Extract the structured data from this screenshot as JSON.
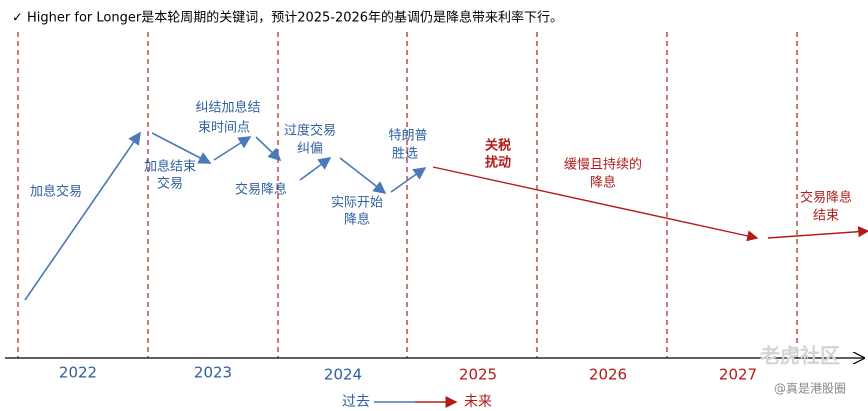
{
  "title": "✓   Higher for Longer是本轮周期的关键词，预计2025-2026年的基调仍是降息带来利率下行。",
  "years": [
    "2022",
    "2023",
    "2024",
    "2025",
    "2026",
    "2027"
  ],
  "events": [
    {
      "lines": [
        "加息交易"
      ]
    },
    {
      "lines": [
        "加息结束",
        "交易"
      ]
    },
    {
      "lines": [
        "纠结加息结",
        "束时间点"
      ]
    },
    {
      "lines": [
        "交易降息"
      ]
    },
    {
      "lines": [
        "过度交易",
        "纠偏"
      ]
    },
    {
      "lines": [
        "实际开始",
        "降息"
      ]
    },
    {
      "lines": [
        "特朗普",
        "胜选"
      ]
    },
    {
      "lines": [
        "关税",
        "扰动"
      ]
    },
    {
      "lines": [
        "缓慢且持续的",
        "降息"
      ]
    },
    {
      "lines": [
        "交易降息",
        "结束"
      ]
    }
  ],
  "legend": {
    "past": "过去",
    "future": "未来"
  },
  "watermark": {
    "brand": "老虎社区",
    "author": "@真是港股圈"
  }
}
